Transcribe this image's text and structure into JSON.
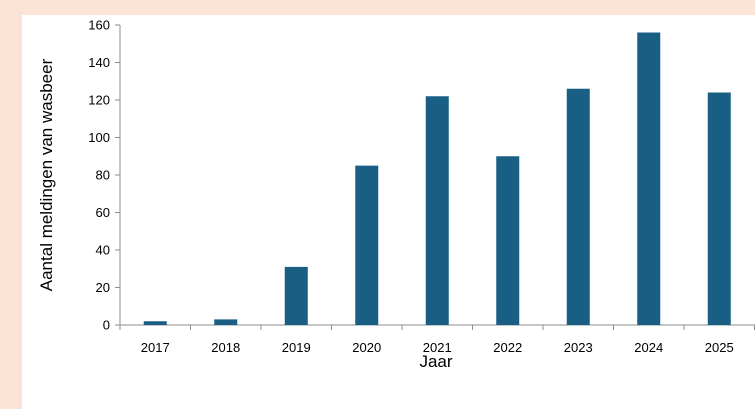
{
  "chart_data": {
    "type": "bar",
    "title": "",
    "xlabel": "Jaar",
    "ylabel": "Aantal meldingen van wasbeer",
    "categories": [
      "2017",
      "2018",
      "2019",
      "2020",
      "2021",
      "2022",
      "2023",
      "2024",
      "2025"
    ],
    "values": [
      2,
      3,
      31,
      85,
      122,
      90,
      126,
      156,
      124
    ],
    "ylim": [
      0,
      160
    ],
    "yticks": [
      "0",
      "20",
      "40",
      "60",
      "80",
      "100",
      "120",
      "140",
      "160"
    ],
    "grid": false,
    "legend": "none",
    "bar_color": "#195e83"
  }
}
